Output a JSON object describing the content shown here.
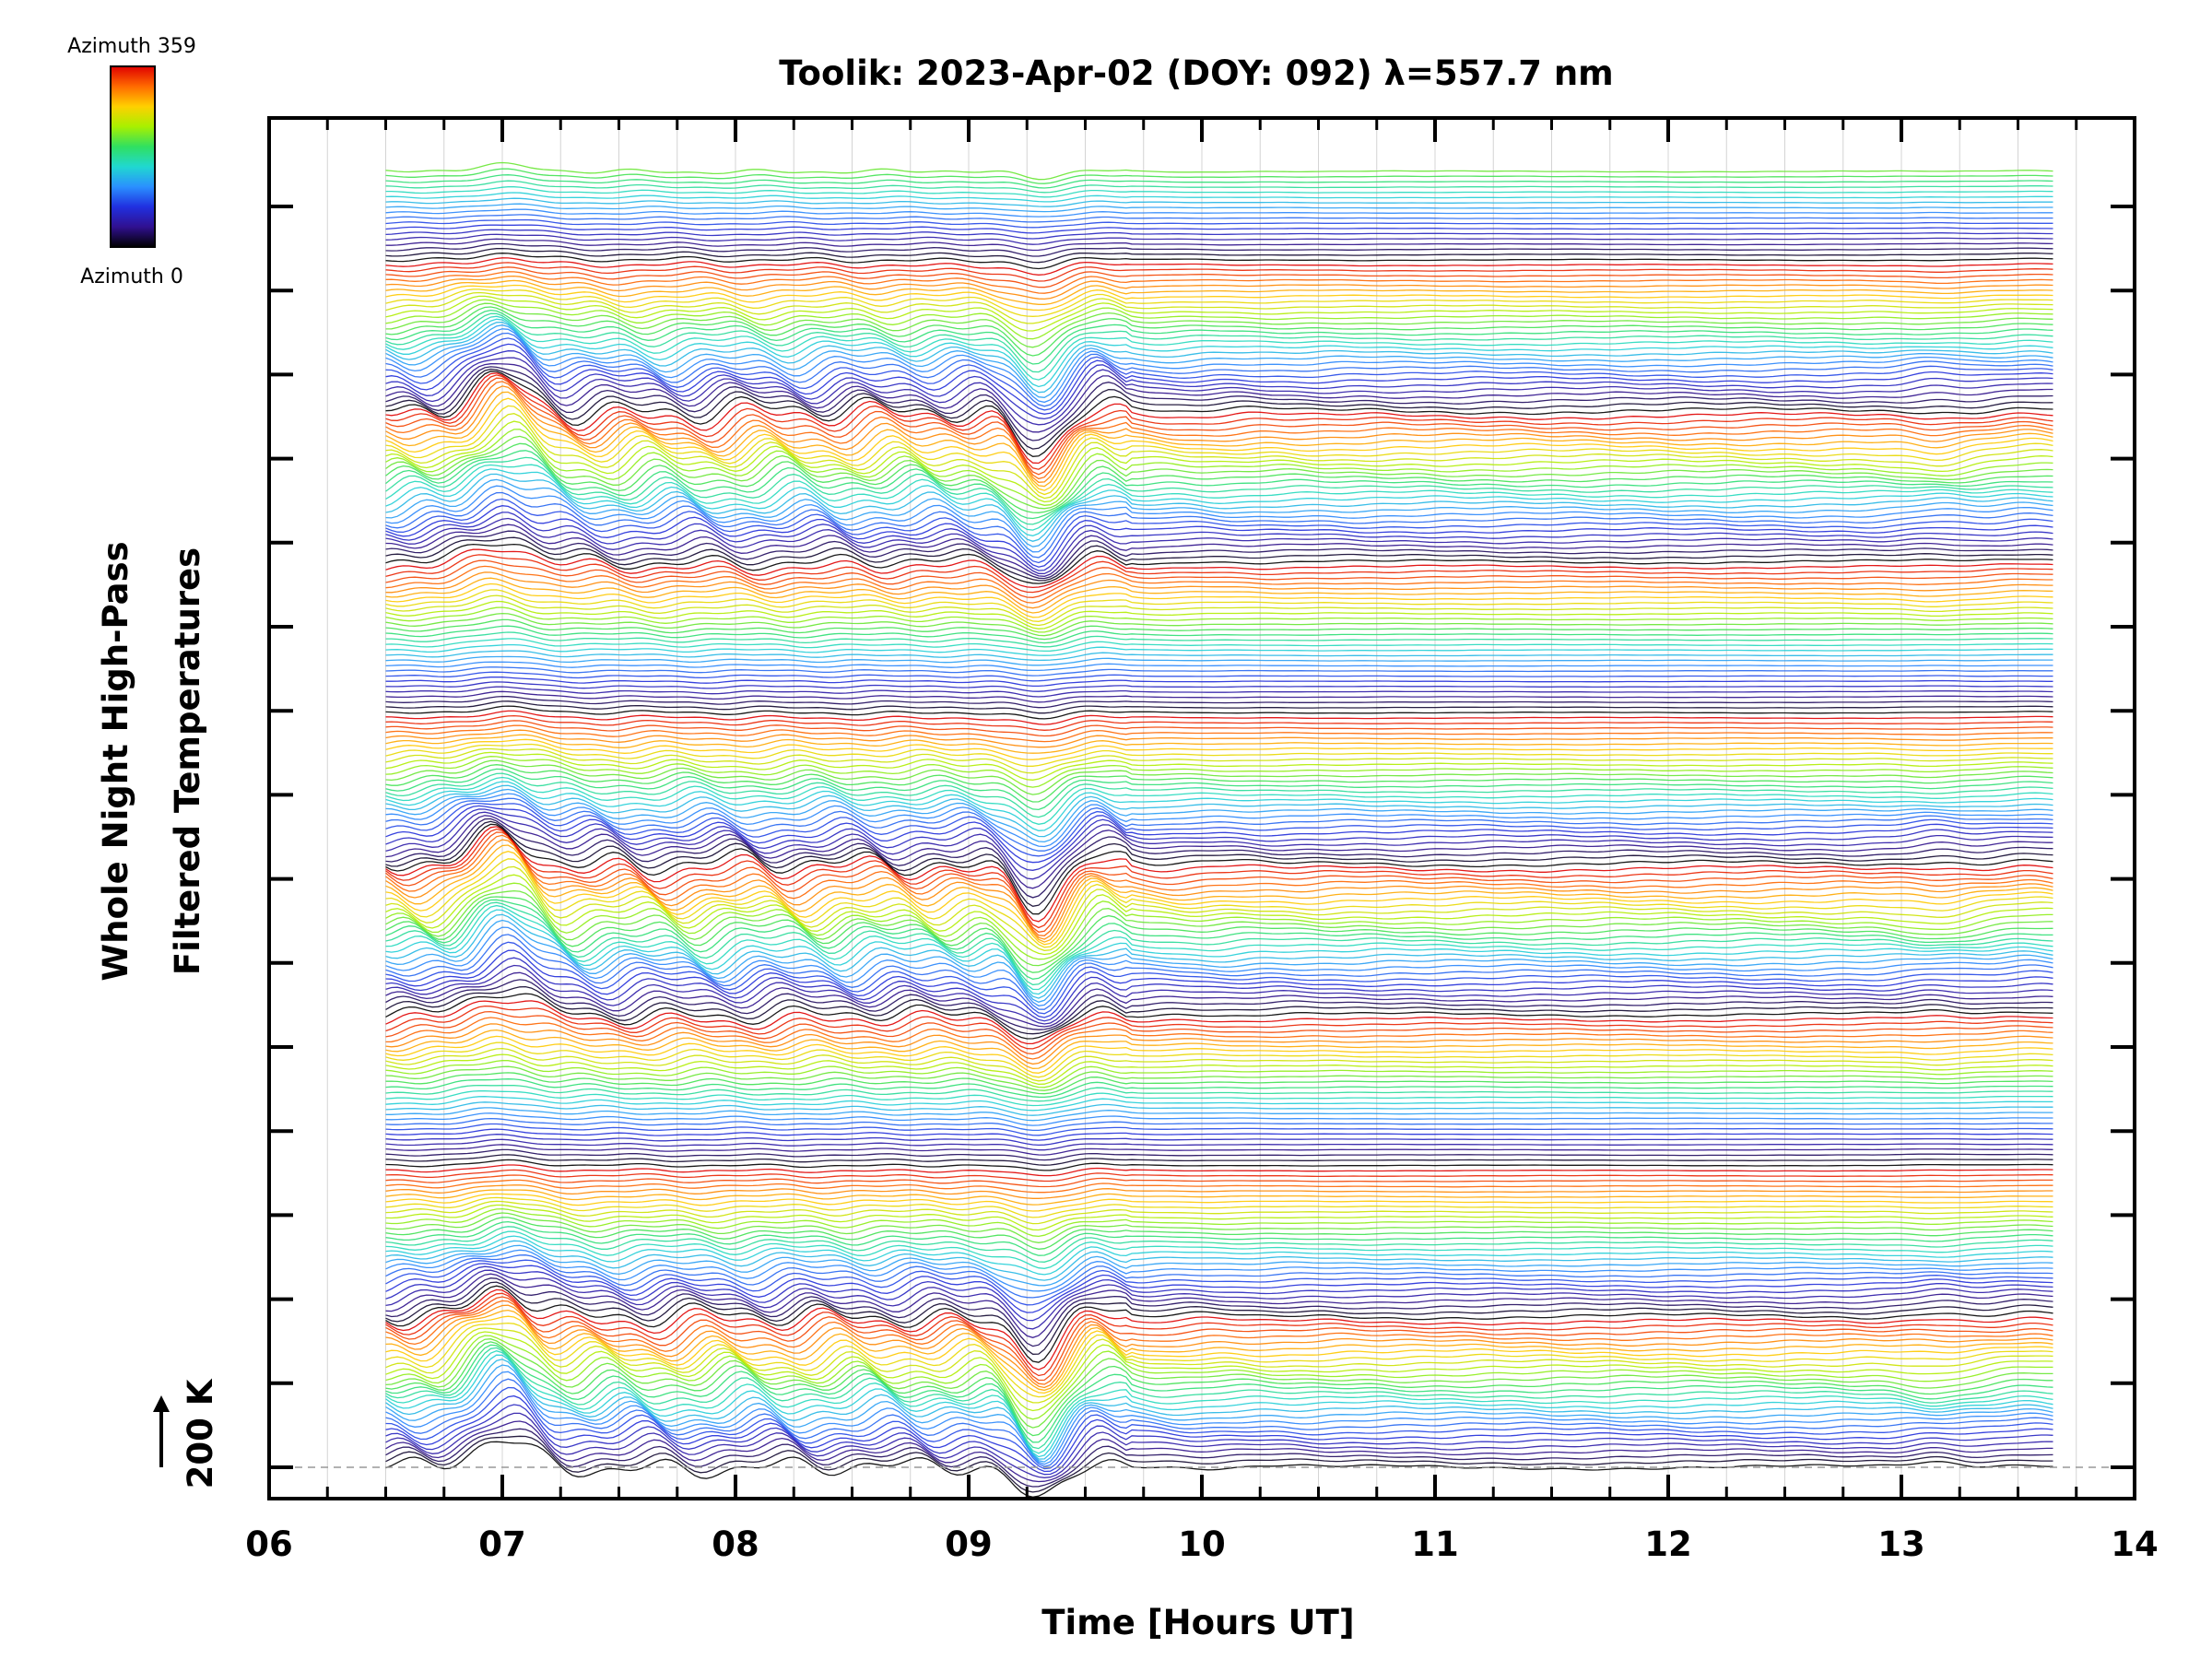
{
  "chart_data": {
    "type": "line",
    "title": "Toolik: 2023-Apr-02 (DOY: 092) λ=557.7 nm",
    "xlabel": "Time [Hours UT]",
    "ylabel_lines": [
      "Whole Night High-Pass",
      "Filtered Temperatures"
    ],
    "xlim": [
      6,
      14
    ],
    "x_ticks": [
      "06",
      "07",
      "08",
      "09",
      "10",
      "11",
      "12",
      "13",
      "14"
    ],
    "data_time_range": [
      6.5,
      13.65
    ],
    "scale_bar_label": "200 K",
    "series_count": 250,
    "azimuth_range": [
      0,
      359
    ],
    "colorbar": {
      "top_label": "Azimuth 359",
      "bottom_label": "Azimuth 0",
      "colors": [
        "#e00000",
        "#ff6a00",
        "#ffd000",
        "#a8f000",
        "#30e060",
        "#20d8d0",
        "#2a90ff",
        "#2030e0",
        "#301090",
        "#000000"
      ]
    },
    "features": {
      "dip_time": 9.3,
      "peak_time": 7.0,
      "quiet_interval": [
        9.8,
        12.8
      ]
    },
    "grid": true,
    "legend": "top-left"
  }
}
